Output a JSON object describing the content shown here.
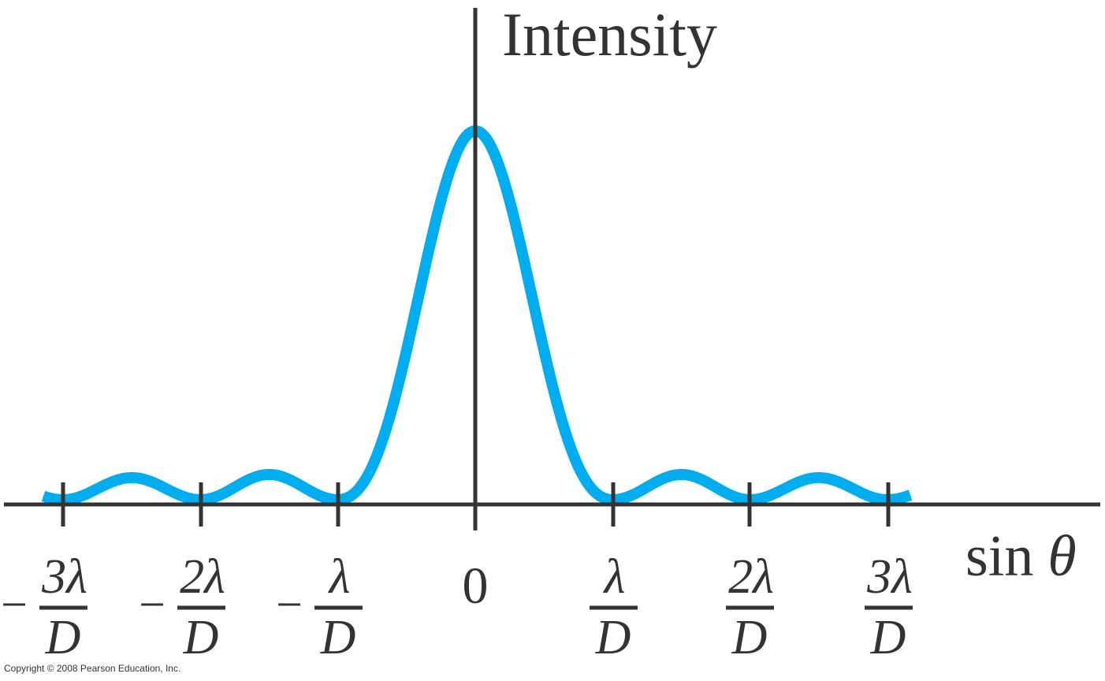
{
  "axis": {
    "y_label": "Intensity",
    "x_label_function": "sin",
    "x_label_variable": "θ"
  },
  "ticks": [
    {
      "sign": "−",
      "numerator": "3λ",
      "denominator": "D"
    },
    {
      "sign": "−",
      "numerator": "2λ",
      "denominator": "D"
    },
    {
      "sign": "−",
      "numerator": "λ",
      "denominator": "D"
    },
    {
      "label": "0"
    },
    {
      "numerator": "λ",
      "denominator": "D"
    },
    {
      "numerator": "2λ",
      "denominator": "D"
    },
    {
      "numerator": "3λ",
      "denominator": "D"
    }
  ],
  "copyright": "Copyright © 2008 Pearson Education, Inc."
}
